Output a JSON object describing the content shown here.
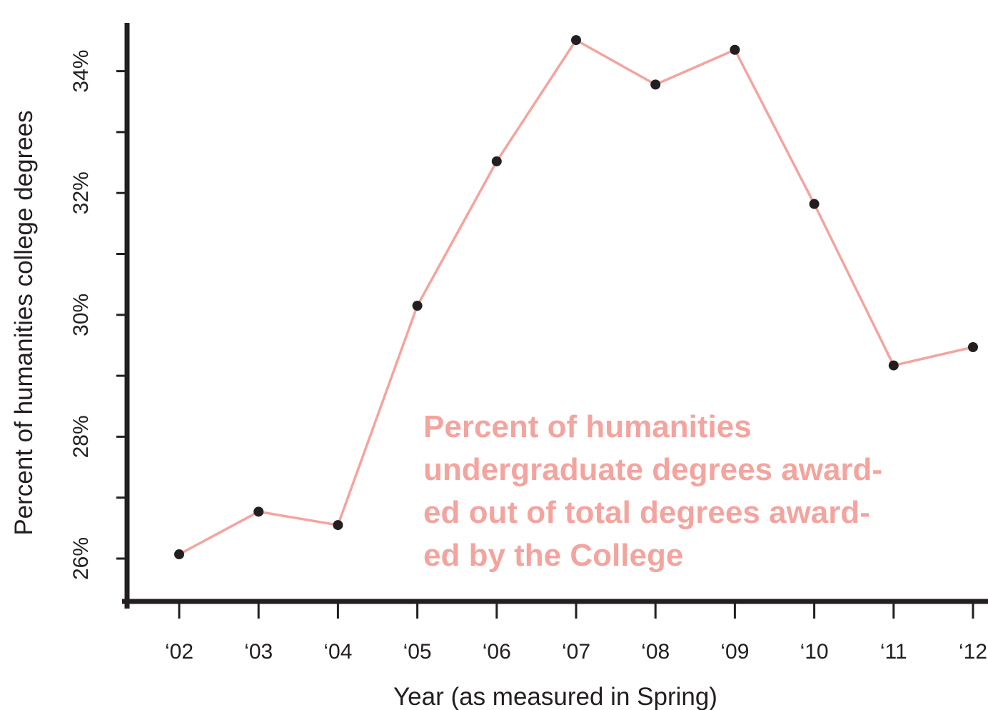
{
  "chart_data": {
    "type": "line",
    "title": "",
    "xlabel": "Year (as measured in Spring)",
    "ylabel": "Percent of humanities college  degrees",
    "categories": [
      "‘02",
      "‘03",
      "‘04",
      "‘05",
      "‘06",
      "‘07",
      "‘08",
      "‘09",
      "‘10",
      "‘11",
      "‘12"
    ],
    "series": [
      {
        "values": [
          26.07,
          26.77,
          26.55,
          30.15,
          32.52,
          34.51,
          33.78,
          34.35,
          31.82,
          29.17,
          29.47
        ]
      }
    ],
    "ylim": [
      25.3,
      34.8
    ],
    "y_ticks": [
      {
        "value": 26,
        "label": "26%"
      },
      {
        "value": 27,
        "label": ""
      },
      {
        "value": 28,
        "label": "28%"
      },
      {
        "value": 29,
        "label": ""
      },
      {
        "value": 30,
        "label": "30%"
      },
      {
        "value": 31,
        "label": ""
      },
      {
        "value": 32,
        "label": "32%"
      },
      {
        "value": 33,
        "label": ""
      },
      {
        "value": 34,
        "label": "34%"
      }
    ],
    "grid": false,
    "legend": "none",
    "annotation": {
      "lines": [
        "Percent of humanities",
        "undergraduate degrees award-",
        "ed out of total degrees award-",
        "ed by the College"
      ]
    },
    "colors": {
      "line": "#f4a49e",
      "points": "#231f20",
      "axes": "#231f20",
      "annotation": "#f4a49e"
    }
  }
}
